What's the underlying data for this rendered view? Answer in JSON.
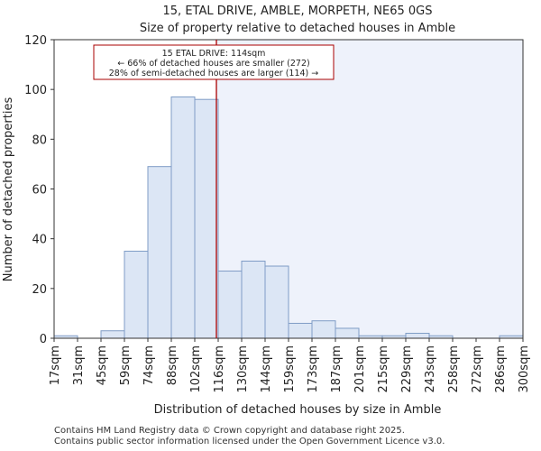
{
  "chart_data": {
    "type": "bar",
    "title": "15, ETAL DRIVE, AMBLE, MORPETH, NE65 0GS",
    "subtitle": "Size of property relative to detached houses in Amble",
    "xlabel": "Distribution of detached houses by size in Amble",
    "ylabel": "Number of detached properties",
    "ylim": [
      0,
      120
    ],
    "yticks": [
      0,
      20,
      40,
      60,
      80,
      100,
      120
    ],
    "xticks": [
      "17sqm",
      "31sqm",
      "45sqm",
      "59sqm",
      "74sqm",
      "88sqm",
      "102sqm",
      "116sqm",
      "130sqm",
      "144sqm",
      "159sqm",
      "173sqm",
      "187sqm",
      "201sqm",
      "215sqm",
      "229sqm",
      "243sqm",
      "258sqm",
      "272sqm",
      "286sqm",
      "300sqm"
    ],
    "values": [
      1,
      0,
      3,
      35,
      69,
      97,
      96,
      27,
      31,
      29,
      6,
      7,
      4,
      1,
      1,
      2,
      1,
      0,
      0,
      1
    ],
    "marker": {
      "bin_position": 7.0,
      "label": "15 ETAL DRIVE: 114sqm",
      "line1": "← 66% of detached houses are smaller (272)",
      "line2": "28% of semi-detached houses are larger (114) →"
    },
    "colors": {
      "bar_fill": "#dce6f5",
      "bar_stroke": "#7f9cc6",
      "highlight_bg": "#eef2fb",
      "marker": "#aa0000"
    }
  },
  "footer": {
    "line1": "Contains HM Land Registry data © Crown copyright and database right 2025.",
    "line2": "Contains public sector information licensed under the Open Government Licence v3.0."
  }
}
